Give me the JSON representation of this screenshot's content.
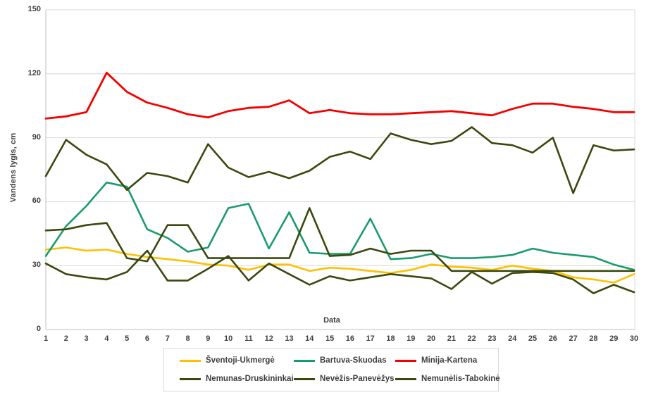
{
  "chart_data": {
    "type": "line",
    "x": [
      1,
      2,
      3,
      4,
      5,
      6,
      7,
      8,
      9,
      10,
      11,
      12,
      13,
      14,
      15,
      16,
      17,
      18,
      19,
      20,
      21,
      22,
      23,
      24,
      25,
      26,
      27,
      28,
      29,
      30
    ],
    "xlabel": "Data",
    "ylabel": "Vandens lygis, cm",
    "ylim": [
      0,
      150
    ],
    "yticks": [
      0,
      30,
      60,
      90,
      120,
      150
    ],
    "grid": true,
    "legend_position": "bottom",
    "series": [
      {
        "name": "Šventoji-Ukmergė",
        "color": "#FFC000",
        "values": [
          37.5,
          38.5,
          37,
          37.5,
          35.5,
          34,
          33,
          32,
          30.5,
          30,
          28,
          30.5,
          30.5,
          27.5,
          29,
          28.5,
          27.5,
          26.5,
          28,
          30.5,
          29.5,
          29,
          28,
          30,
          28.5,
          27.5,
          24.5,
          23.5,
          22,
          26
        ]
      },
      {
        "name": "Bartuva-Skuodas",
        "color": "#1A9B6C",
        "values": [
          34.5,
          48.5,
          58,
          69,
          67,
          47,
          43,
          36.5,
          38.5,
          57,
          59,
          38,
          55,
          36,
          35.5,
          35.5,
          52,
          33,
          33.5,
          35.5,
          33.5,
          33.5,
          34,
          35,
          38,
          36,
          35,
          34,
          30.5,
          28
        ]
      },
      {
        "name": "Minija-Kartena",
        "color": "#F40000",
        "values": [
          99,
          100,
          102,
          120.5,
          111.5,
          106.5,
          104,
          101,
          99.5,
          102.5,
          104,
          104.5,
          107.5,
          101.5,
          103,
          101.5,
          101,
          101,
          101.5,
          102,
          102.5,
          101.5,
          100.5,
          103.5,
          106,
          106,
          104.5,
          103.5,
          102,
          102
        ]
      },
      {
        "name": "Nemunas-Druskininkai",
        "color": "#3B490F",
        "values": [
          72,
          89,
          82,
          77.5,
          65.5,
          73.5,
          72,
          69,
          87,
          76,
          71.5,
          74,
          71,
          74.5,
          81,
          83.5,
          80,
          92,
          89,
          87,
          88.5,
          95,
          87.5,
          86.5,
          83,
          90,
          64,
          86.5,
          84,
          84.5
        ]
      },
      {
        "name": "Nevėžis-Panevėžys",
        "color": "#3B490F",
        "values": [
          46.5,
          47,
          49,
          50,
          33.5,
          32,
          49,
          49,
          33.5,
          33.5,
          33.5,
          33.5,
          33.5,
          57,
          34.5,
          35,
          38,
          35.5,
          37,
          37,
          27.5,
          27.5,
          27.5,
          27.5,
          27.5,
          27.5,
          27.5,
          27.5,
          27.5,
          27.5
        ]
      },
      {
        "name": "Nemunėlis-Tabokinė",
        "color": "#3B490F",
        "values": [
          31,
          26,
          24.5,
          23.5,
          27,
          37,
          23,
          23,
          28.5,
          34.5,
          23,
          31,
          26,
          21,
          25,
          23,
          24.5,
          26,
          25,
          24,
          19,
          27,
          21.5,
          26.5,
          27,
          26.5,
          23.5,
          17,
          21,
          17.5
        ]
      }
    ]
  },
  "colors": {
    "background": "#FFFFFF",
    "gridline": "#D9D9D9",
    "axis_line": "#BFBFBF",
    "text": "#3F3F3F"
  }
}
